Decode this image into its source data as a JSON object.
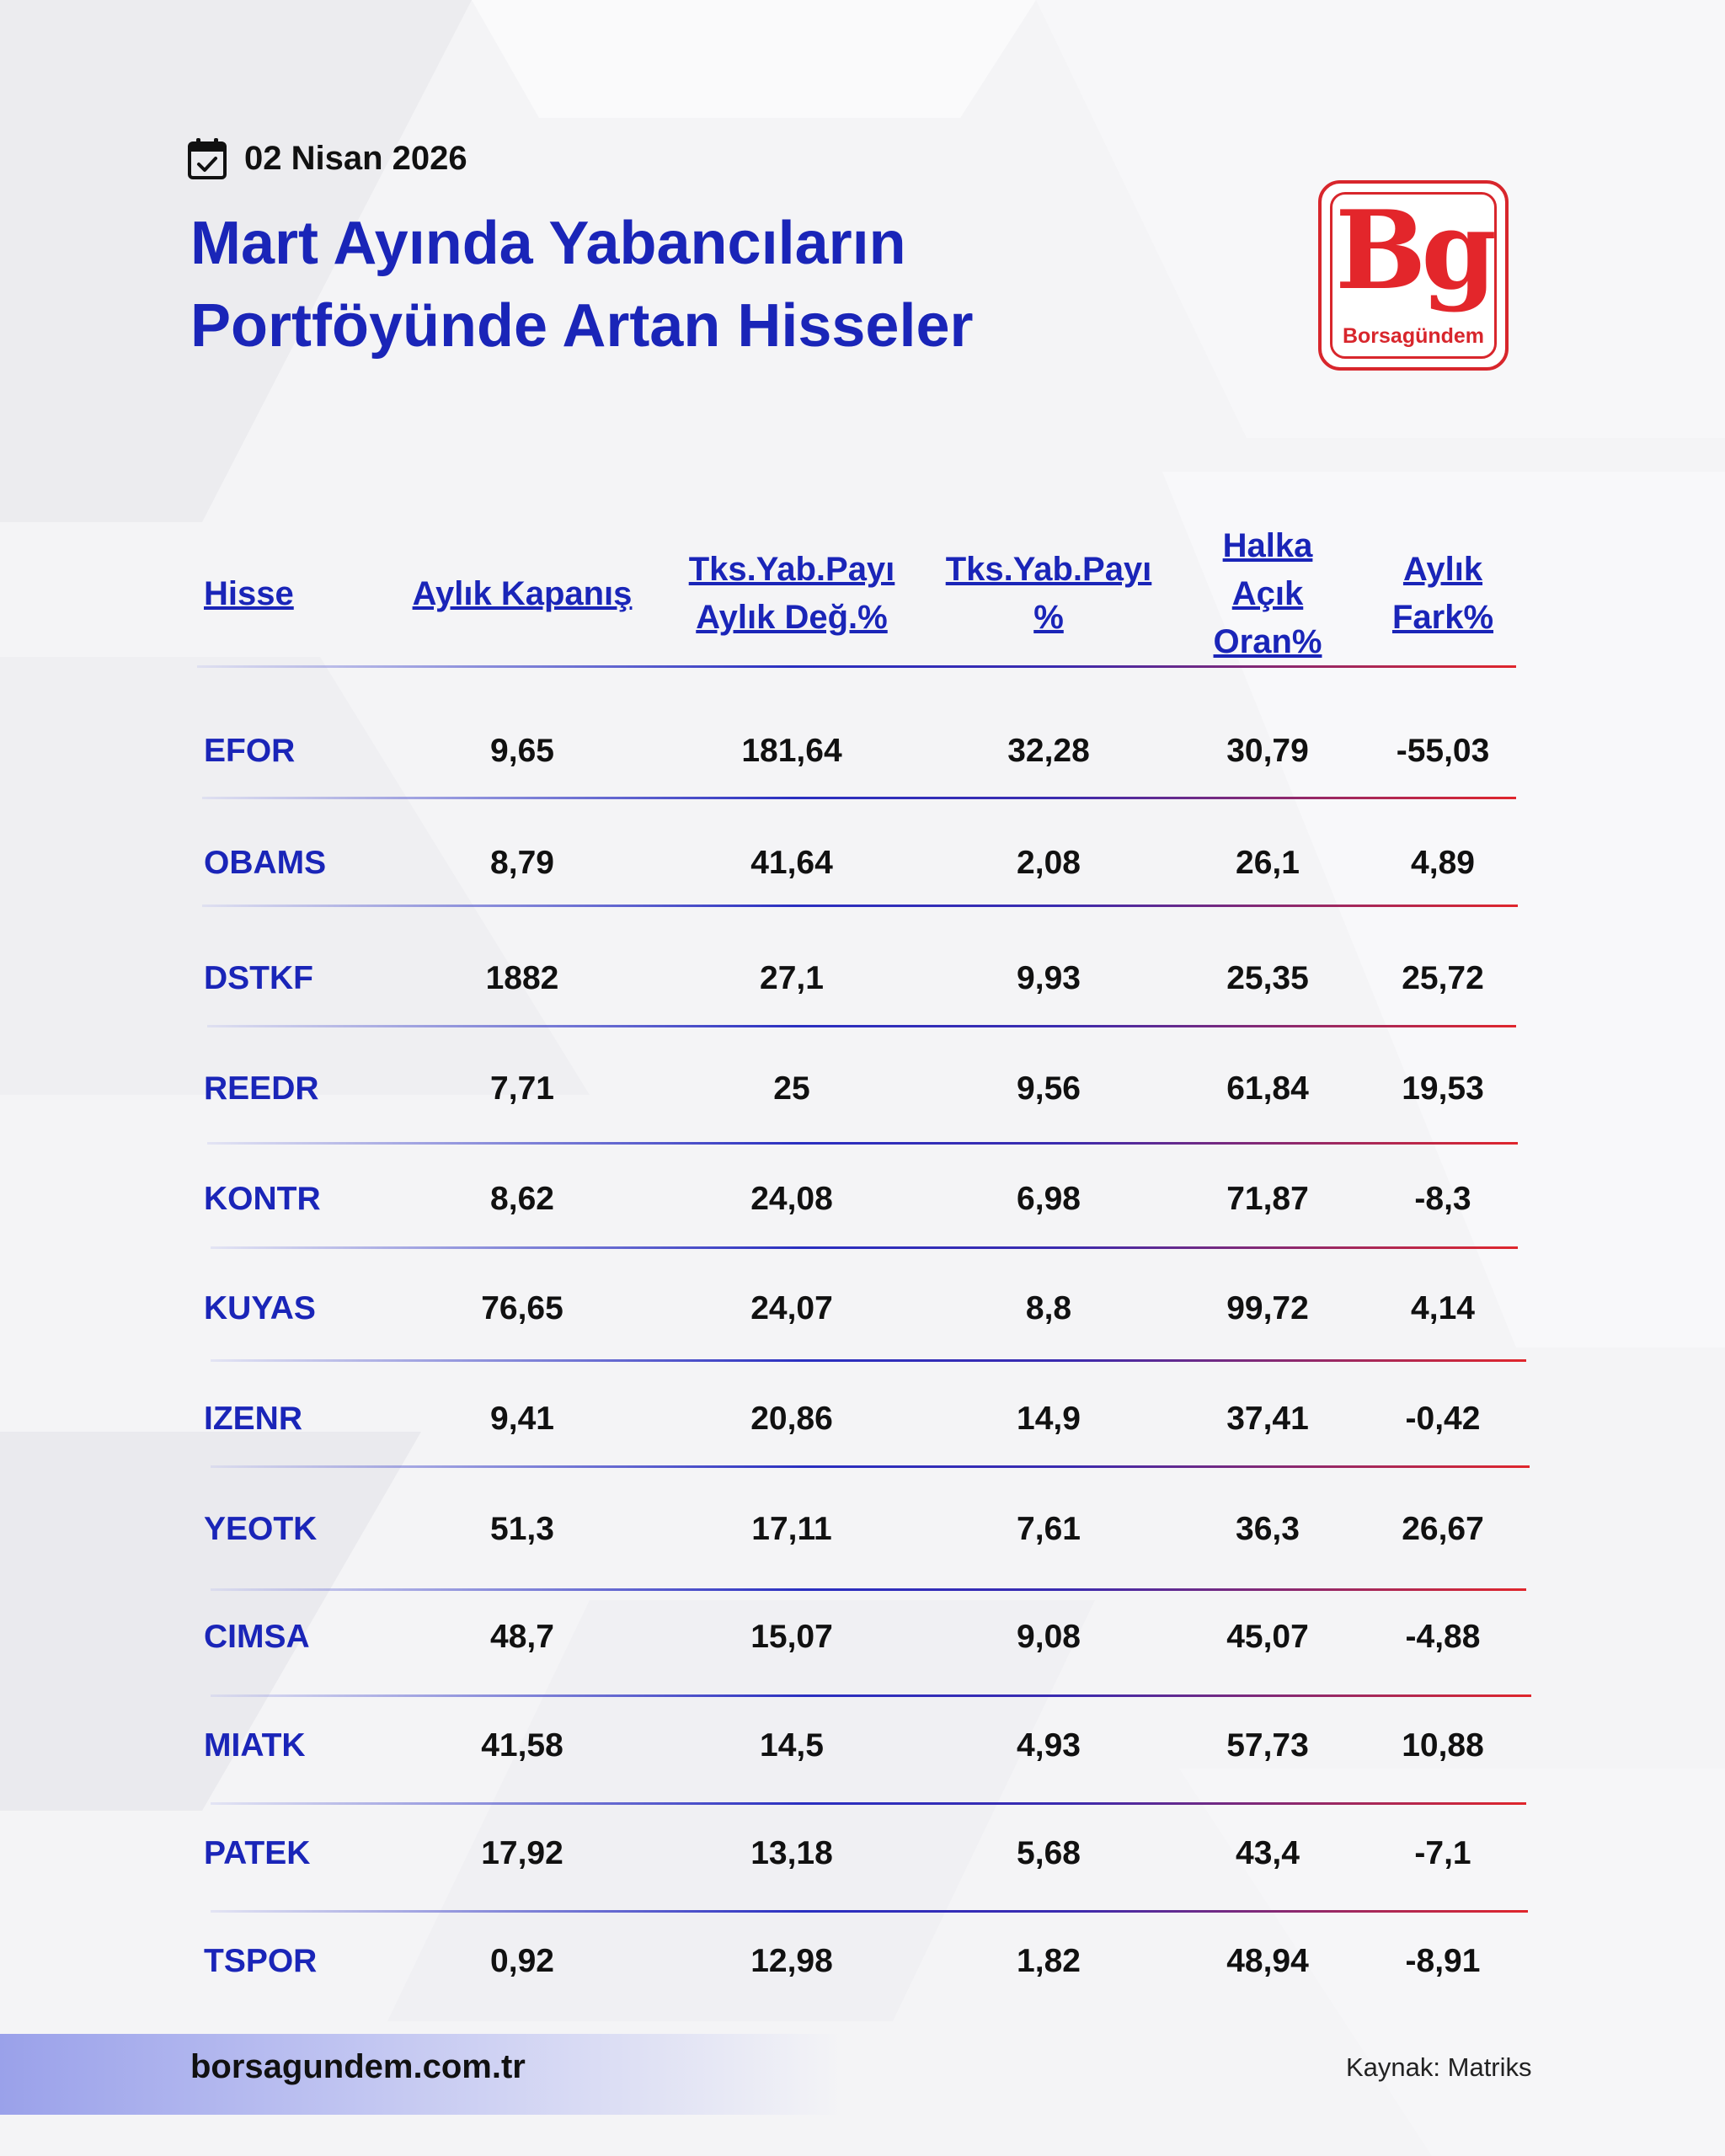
{
  "date": "02 Nisan 2026",
  "title_lines": [
    "Mart Ayında Yabancıların",
    "Portföyünde Artan Hisseler"
  ],
  "logo": {
    "mark": "Bg",
    "name": "Borsagündem",
    "color": "#e3262b"
  },
  "icons": {
    "calendar": "calendar-check-icon"
  },
  "colors": {
    "accent": "#1a25b8",
    "red": "#e0262c"
  },
  "table": {
    "headers": {
      "hisse": [
        "Hisse"
      ],
      "aylik_kapanis": [
        "Aylık Kapanış"
      ],
      "tks_yab_payi_deg": [
        "Tks.Yab.Payı",
        "Aylık Değ.%"
      ],
      "tks_yab_payi": [
        "Tks.Yab.Payı",
        "%"
      ],
      "halka_acik": [
        "Halka",
        "Açık",
        "Oran%"
      ],
      "aylik_fark": [
        "Aylık",
        "Fark%"
      ]
    },
    "rows": [
      [
        "EFOR",
        "9,65",
        "181,64",
        "32,28",
        "30,79",
        "-55,03"
      ],
      [
        "OBAMS",
        "8,79",
        "41,64",
        "2,08",
        "26,1",
        "4,89"
      ],
      [
        "DSTKF",
        "1882",
        "27,1",
        "9,93",
        "25,35",
        "25,72"
      ],
      [
        "REEDR",
        "7,71",
        "25",
        "9,56",
        "61,84",
        "19,53"
      ],
      [
        "KONTR",
        "8,62",
        "24,08",
        "6,98",
        "71,87",
        "-8,3"
      ],
      [
        "KUYAS",
        "76,65",
        "24,07",
        "8,8",
        "99,72",
        "4,14"
      ],
      [
        "IZENR",
        "9,41",
        "20,86",
        "14,9",
        "37,41",
        "-0,42"
      ],
      [
        "YEOTK",
        "51,3",
        "17,11",
        "7,61",
        "36,3",
        "26,67"
      ],
      [
        "CIMSA",
        "48,7",
        "15,07",
        "9,08",
        "45,07",
        "-4,88"
      ],
      [
        "MIATK",
        "41,58",
        "14,5",
        "4,93",
        "57,73",
        "10,88"
      ],
      [
        "PATEK",
        "17,92",
        "13,18",
        "5,68",
        "43,4",
        "-7,1"
      ],
      [
        "TSPOR",
        "0,92",
        "12,98",
        "1,82",
        "48,94",
        "-8,91"
      ]
    ]
  },
  "footer": {
    "url": "borsagundem.com.tr",
    "source": "Kaynak: Matriks"
  }
}
